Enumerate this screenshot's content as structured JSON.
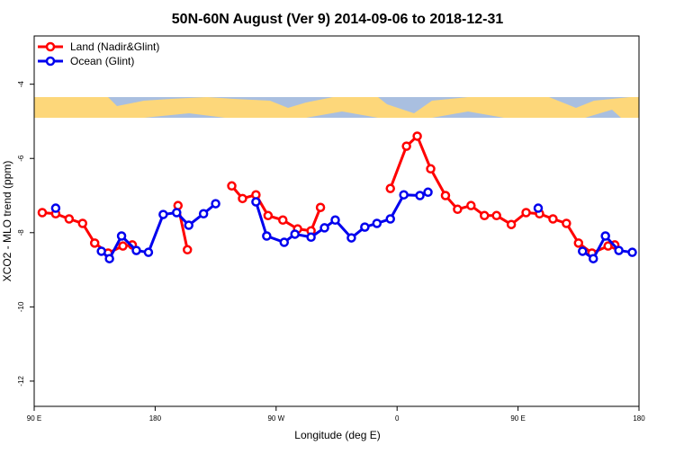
{
  "chart_data": {
    "type": "line",
    "title": "50N-60N August (Ver 9)   2014-09-06 to 2018-12-31",
    "x_label": "Longitude (deg E)",
    "y_label": "XCO2 - MLO trend (ppm)",
    "xlim": [
      90,
      540
    ],
    "ylim": [
      -12.68,
      -2.7
    ],
    "xticks": [
      {
        "value": 90,
        "label": "90 E"
      },
      180,
      {
        "value": 270,
        "label": "90 W"
      },
      {
        "value": 360,
        "label": "0"
      },
      {
        "value": 450,
        "label": "90 E"
      },
      {
        "value": 540,
        "label": "180"
      }
    ],
    "yticks": [
      -4,
      -6,
      -8,
      -10,
      -12
    ],
    "legend": "top-left",
    "series": [
      {
        "name": "Land (Nadir&Glint)",
        "color": "#ff0000",
        "x": [
          96,
          106,
          116,
          126,
          135,
          145,
          156,
          163,
          180,
          197,
          204,
          220,
          237,
          245,
          255,
          264,
          275,
          286,
          296,
          303,
          330,
          355,
          367,
          375,
          385,
          396,
          405,
          415,
          425,
          434,
          445,
          456,
          466,
          476,
          486,
          495,
          505,
          517,
          522
        ],
        "values": [
          -7.46,
          -7.49,
          -7.63,
          -7.75,
          -8.28,
          -8.55,
          -8.36,
          -8.33,
          null,
          -7.27,
          -8.46,
          null,
          -6.74,
          -7.08,
          -6.98,
          -7.54,
          -7.66,
          -7.9,
          -7.95,
          -7.32,
          null,
          -6.81,
          -5.67,
          -5.4,
          -6.28,
          -7.0,
          -7.37,
          -7.27,
          -7.54,
          -7.54,
          -7.78,
          -7.46,
          -7.49,
          -7.63,
          -7.75,
          -8.28,
          -8.55,
          -8.36,
          -8.33
        ]
      },
      {
        "name": "Ocean (Glint)",
        "color": "#0000ee",
        "x": [
          106,
          120,
          140,
          146,
          155,
          166,
          175,
          186,
          196,
          205,
          216,
          225,
          240,
          255,
          263,
          276,
          284,
          296,
          306,
          314,
          326,
          336,
          345,
          355,
          365,
          377,
          383,
          420,
          465,
          480,
          498,
          506,
          515,
          525,
          535
        ],
        "values": [
          -7.34,
          null,
          -8.5,
          -8.7,
          -8.09,
          -8.48,
          -8.53,
          -7.51,
          -7.46,
          -7.8,
          -7.49,
          -7.22,
          null,
          -7.17,
          -8.09,
          -8.26,
          -8.04,
          -8.12,
          -7.87,
          -7.66,
          -8.14,
          -7.85,
          -7.75,
          -7.63,
          -6.98,
          -7.0,
          -6.91,
          null,
          -7.34,
          null,
          -8.5,
          -8.7,
          -8.09,
          -8.48,
          -8.53
        ]
      }
    ]
  }
}
